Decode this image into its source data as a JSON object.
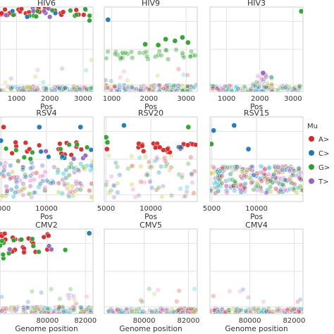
{
  "chart_data": {
    "type": "scatter",
    "legend": {
      "title": "Mu",
      "entries": [
        "A>",
        "C>",
        "G>",
        "T>"
      ],
      "placement": "right"
    },
    "colors": {
      "A>": "#d62728",
      "C>": "#1f77b4",
      "G>": "#2ca02c",
      "T>": "#9467bd",
      "faint_mix": [
        "#e377c2",
        "#d62728",
        "#1f77b4",
        "#2ca02c",
        "#17becf",
        "#bcbd22",
        "#9467bd"
      ]
    },
    "grid": true,
    "rows": [
      {
        "xlabel": "Pos",
        "panels": [
          {
            "title": "HIV6",
            "xlim": [
              500,
              3300
            ],
            "ylim": [
              0,
              1
            ],
            "xticks": [
              {
                "v": 1000,
                "label": "1000"
              },
              {
                "v": 2000,
                "label": "2000"
              },
              {
                "v": 3000,
                "label": "3000"
              }
            ],
            "clusters": [
              {
                "series": "A>",
                "x": [
                  500,
                  3300
                ],
                "y": [
                  0.9,
                  1.0
                ],
                "n": 22,
                "opacity": 0.95
              },
              {
                "series": "T>",
                "x": [
                  500,
                  3300
                ],
                "y": [
                  0.88,
                  0.99
                ],
                "n": 10,
                "opacity": 0.95
              },
              {
                "series": "G>",
                "x": [
                  500,
                  3300
                ],
                "y": [
                  0.82,
                  0.98
                ],
                "n": 12,
                "opacity": 0.95
              },
              {
                "series": "C>",
                "x": [
                  500,
                  3300
                ],
                "y": [
                  0.8,
                  0.98
                ],
                "n": 3,
                "opacity": 0.95
              },
              {
                "series": "faint",
                "x": [
                  500,
                  3300
                ],
                "y": [
                  0.0,
                  0.06
                ],
                "n": 110,
                "opacity": 0.35
              },
              {
                "series": "faint",
                "x": [
                  500,
                  3300
                ],
                "y": [
                  0.1,
                  0.45
                ],
                "n": 8,
                "opacity": 0.25
              }
            ],
            "points": []
          },
          {
            "title": "HIV9",
            "xlim": [
              800,
              3300
            ],
            "ylim": [
              0,
              1
            ],
            "xticks": [
              {
                "v": 1000,
                "label": "1000"
              },
              {
                "v": 2000,
                "label": "2000"
              },
              {
                "v": 3000,
                "label": "3000"
              }
            ],
            "clusters": [
              {
                "series": "G>",
                "x": [
                  800,
                  3300
                ],
                "y": [
                  0.38,
                  0.5
                ],
                "n": 35,
                "opacity": 0.4
              },
              {
                "series": "faint",
                "x": [
                  800,
                  3300
                ],
                "y": [
                  0.0,
                  0.08
                ],
                "n": 110,
                "opacity": 0.35
              },
              {
                "series": "faint",
                "x": [
                  800,
                  3300
                ],
                "y": [
                  0.12,
                  0.28
                ],
                "n": 10,
                "opacity": 0.25
              }
            ],
            "points": [
              {
                "series": "C>",
                "x": 900,
                "y": 0.85
              },
              {
                "series": "G>",
                "x": 2450,
                "y": 0.62
              },
              {
                "series": "G>",
                "x": 2700,
                "y": 0.6
              },
              {
                "series": "G>",
                "x": 2900,
                "y": 0.64
              },
              {
                "series": "G>",
                "x": 3050,
                "y": 0.58
              },
              {
                "series": "G>",
                "x": 2250,
                "y": 0.55
              },
              {
                "series": "G>",
                "x": 1900,
                "y": 0.56
              }
            ]
          },
          {
            "title": "HIV3",
            "xlim": [
              500,
              3300
            ],
            "ylim": [
              0,
              1
            ],
            "xticks": [
              {
                "v": 1000,
                "label": "1000"
              },
              {
                "v": 2000,
                "label": "2000"
              },
              {
                "v": 3000,
                "label": "3000"
              }
            ],
            "clusters": [
              {
                "series": "faint",
                "x": [
                  500,
                  3300
                ],
                "y": [
                  0.0,
                  0.07
                ],
                "n": 90,
                "opacity": 0.35
              },
              {
                "series": "faint",
                "x": [
                  1800,
                  2400
                ],
                "y": [
                  0.05,
                  0.2
                ],
                "n": 22,
                "opacity": 0.35
              }
            ],
            "points": [
              {
                "series": "G>",
                "x": 3250,
                "y": 0.95
              },
              {
                "series": "T>",
                "x": 2100,
                "y": 0.22
              }
            ]
          }
        ]
      },
      {
        "xlabel": "Pos",
        "panels": [
          {
            "title": "RSV4",
            "xlim": [
              4800,
              15200
            ],
            "ylim": [
              0,
              1
            ],
            "xticks": [
              {
                "v": 5000,
                "label": "5000"
              },
              {
                "v": 10000,
                "label": "10000"
              }
            ],
            "clusters": [
              {
                "series": "A>",
                "x": [
                  4800,
                  15200
                ],
                "y": [
                  0.55,
                  0.7
                ],
                "n": 16,
                "opacity": 0.95
              },
              {
                "series": "G>",
                "x": [
                  4800,
                  15200
                ],
                "y": [
                  0.5,
                  0.68
                ],
                "n": 10,
                "opacity": 0.95
              },
              {
                "series": "C>",
                "x": [
                  9000,
                  15200
                ],
                "y": [
                  0.5,
                  0.62
                ],
                "n": 5,
                "opacity": 0.95
              },
              {
                "series": "T>",
                "x": [
                  9000,
                  15200
                ],
                "y": [
                  0.5,
                  0.62
                ],
                "n": 4,
                "opacity": 0.95
              },
              {
                "series": "faint",
                "x": [
                  4800,
                  15200
                ],
                "y": [
                  0.05,
                  0.48
                ],
                "n": 120,
                "opacity": 0.4
              }
            ],
            "points": [
              {
                "series": "A>",
                "x": 5200,
                "y": 0.88
              },
              {
                "series": "C>",
                "x": 9200,
                "y": 0.88
              },
              {
                "series": "C>",
                "x": 13800,
                "y": 0.88
              },
              {
                "series": "C>",
                "x": 4900,
                "y": 0.72
              }
            ]
          },
          {
            "title": "RSV20",
            "xlim": [
              4800,
              15200
            ],
            "ylim": [
              0,
              1
            ],
            "xticks": [
              {
                "v": 5000,
                "label": "5000"
              },
              {
                "v": 10000,
                "label": "10000"
              }
            ],
            "clusters": [
              {
                "series": "A>",
                "x": [
                  8500,
                  15200
                ],
                "y": [
                  0.58,
                  0.7
                ],
                "n": 24,
                "opacity": 0.95
              },
              {
                "series": "faint",
                "x": [
                  4800,
                  15200
                ],
                "y": [
                  0.05,
                  0.55
                ],
                "n": 70,
                "opacity": 0.3
              }
            ],
            "points": [
              {
                "series": "G>",
                "x": 5000,
                "y": 0.76
              },
              {
                "series": "G>",
                "x": 5150,
                "y": 0.7
              },
              {
                "series": "A>",
                "x": 5100,
                "y": 0.62
              },
              {
                "series": "C>",
                "x": 7000,
                "y": 0.9
              },
              {
                "series": "G>",
                "x": 14200,
                "y": 0.88
              },
              {
                "series": "C>",
                "x": 13300,
                "y": 0.64
              }
            ]
          },
          {
            "title": "RSV15",
            "xlim": [
              4800,
              15200
            ],
            "ylim": [
              0,
              1
            ],
            "xticks": [
              {
                "v": 5000,
                "label": "5000"
              },
              {
                "v": 10000,
                "label": "10000"
              }
            ],
            "clusters": [
              {
                "series": "faint",
                "x": [
                  4800,
                  15200
                ],
                "y": [
                  0.1,
                  0.42
                ],
                "n": 240,
                "opacity": 0.4
              }
            ],
            "points": [
              {
                "series": "C>",
                "x": 7500,
                "y": 0.9
              },
              {
                "series": "C>",
                "x": 5200,
                "y": 0.84
              },
              {
                "series": "G>",
                "x": 4950,
                "y": 0.68
              },
              {
                "series": "C>",
                "x": 9100,
                "y": 0.62
              }
            ]
          }
        ]
      },
      {
        "xlabel": "Genome position",
        "panels": [
          {
            "title": "CMV2",
            "xlim": [
              77500,
              82400
            ],
            "ylim": [
              0,
              1
            ],
            "xticks": [
              {
                "v": 80000,
                "label": "80000"
              },
              {
                "v": 82000,
                "label": "82000"
              }
            ],
            "clusters": [
              {
                "series": "A>",
                "x": [
                  77500,
                  80200
                ],
                "y": [
                  0.7,
                  0.96
                ],
                "n": 22,
                "opacity": 0.95
              },
              {
                "series": "G>",
                "x": [
                  77500,
                  81300
                ],
                "y": [
                  0.62,
                  0.9
                ],
                "n": 12,
                "opacity": 0.95
              },
              {
                "series": "T>",
                "x": [
                  77500,
                  80500
                ],
                "y": [
                  0.75,
                  0.9
                ],
                "n": 3,
                "opacity": 0.95
              },
              {
                "series": "faint",
                "x": [
                  77500,
                  82400
                ],
                "y": [
                  0.0,
                  0.08
                ],
                "n": 110,
                "opacity": 0.35
              },
              {
                "series": "faint",
                "x": [
                  77500,
                  82400
                ],
                "y": [
                  0.1,
                  0.3
                ],
                "n": 14,
                "opacity": 0.25
              }
            ],
            "points": [
              {
                "series": "C>",
                "x": 82200,
                "y": 0.95
              }
            ]
          },
          {
            "title": "CMV5",
            "xlim": [
              78200,
              82400
            ],
            "ylim": [
              0,
              1
            ],
            "xticks": [
              {
                "v": 80000,
                "label": "80000"
              },
              {
                "v": 82000,
                "label": "82000"
              }
            ],
            "clusters": [
              {
                "series": "faint",
                "x": [
                  78200,
                  82400
                ],
                "y": [
                  0.0,
                  0.06
                ],
                "n": 100,
                "opacity": 0.35
              },
              {
                "series": "faint",
                "x": [
                  78200,
                  82400
                ],
                "y": [
                  0.1,
                  0.3
                ],
                "n": 8,
                "opacity": 0.25
              }
            ],
            "points": []
          },
          {
            "title": "CMV4",
            "xlim": [
              78200,
              82400
            ],
            "ylim": [
              0,
              1
            ],
            "xticks": [
              {
                "v": 80000,
                "label": "80000"
              },
              {
                "v": 82000,
                "label": "82000"
              }
            ],
            "clusters": [
              {
                "series": "faint",
                "x": [
                  78200,
                  82400
                ],
                "y": [
                  0.0,
                  0.06
                ],
                "n": 100,
                "opacity": 0.35
              },
              {
                "series": "faint",
                "x": [
                  78200,
                  82400
                ],
                "y": [
                  0.1,
                  0.3
                ],
                "n": 8,
                "opacity": 0.25
              }
            ],
            "points": []
          }
        ]
      }
    ]
  }
}
